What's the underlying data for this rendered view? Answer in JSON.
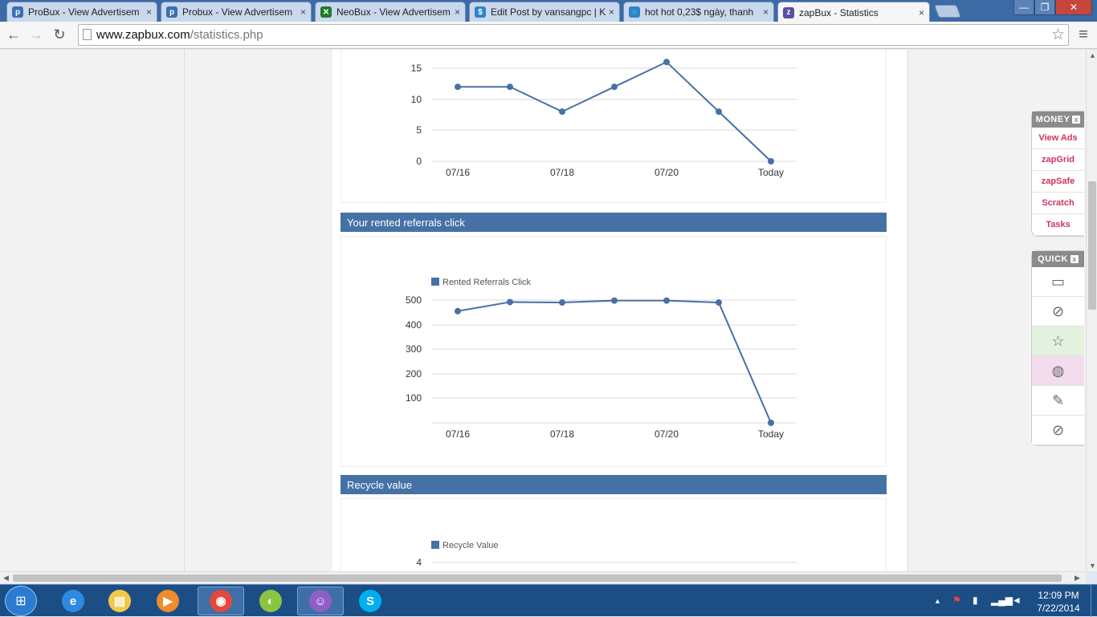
{
  "browser": {
    "tabs": [
      {
        "title": "ProBux - View Advertisem",
        "favicon_color": "#3a6fb0",
        "favicon": "p"
      },
      {
        "title": "Probux - View Advertisem",
        "favicon_color": "#3a6fb0",
        "favicon": "p"
      },
      {
        "title": "NeoBux - View Advertisem",
        "favicon_color": "#1f7a2f",
        "favicon": "✕"
      },
      {
        "title": "Edit Post by vansangpc | K",
        "favicon_color": "#2e84c9",
        "favicon": "$"
      },
      {
        "title": "hot hot 0,23$ ngày, thanh",
        "favicon_color": "#2e84c9",
        "favicon": "◌"
      },
      {
        "title": "zapBux - Statistics",
        "favicon_color": "#5a4fa2",
        "favicon": "z"
      }
    ],
    "url_domain": "www.zapbux.com",
    "url_path": "/statistics.php",
    "window_controls": [
      "—",
      "❐",
      "✕"
    ]
  },
  "charts": {
    "top": {
      "chart_data": {
        "type": "line",
        "x": [
          "07/16",
          "07/17",
          "07/18",
          "07/19",
          "07/20",
          "07/21",
          "Today"
        ],
        "x_tick_labels": [
          "07/16",
          "07/18",
          "07/20",
          "Today"
        ],
        "y_tick_labels": [
          "15",
          "10",
          "5",
          "0"
        ],
        "values": [
          12,
          12,
          8,
          12,
          16,
          8,
          0
        ],
        "ylim": [
          0,
          17
        ],
        "grid": true,
        "line_color": "#4671a6"
      }
    },
    "rented": {
      "title": "Your rented referrals click",
      "chart_data": {
        "type": "line",
        "series": [
          {
            "name": "Rented Referrals Click",
            "values": [
              455,
              492,
              490,
              498,
              498,
              490,
              0
            ]
          }
        ],
        "x": [
          "07/16",
          "07/17",
          "07/18",
          "07/19",
          "07/20",
          "07/21",
          "Today"
        ],
        "x_tick_labels": [
          "07/16",
          "07/18",
          "07/20",
          "Today"
        ],
        "y_tick_labels": [
          "500",
          "400",
          "300",
          "200",
          "100"
        ],
        "ylim": [
          0,
          500
        ],
        "grid": true,
        "legend": "top-left",
        "line_color": "#4671a6"
      }
    },
    "recycle": {
      "title": "Recycle value",
      "chart_data": {
        "type": "line",
        "series": [
          {
            "name": "Recycle Value",
            "values": []
          }
        ],
        "y_tick_labels": [
          "4"
        ],
        "legend": "top-left",
        "line_color": "#4671a6"
      }
    }
  },
  "sidebar": {
    "money": {
      "title": "MONEY",
      "close": "x",
      "items": [
        "View Ads",
        "zapGrid",
        "zapSafe",
        "Scratch",
        "Tasks"
      ]
    },
    "quick": {
      "title": "QUICK",
      "close": "x",
      "items": [
        {
          "icon": "id-card-icon",
          "glyph": "▭",
          "bg": "#ffffff"
        },
        {
          "icon": "link-icon",
          "glyph": "⊘",
          "bg": "#ffffff"
        },
        {
          "icon": "star-icon",
          "glyph": "☆",
          "bg": "#e3f2df"
        },
        {
          "icon": "globe-icon",
          "glyph": "◍",
          "bg": "#f4dcef"
        },
        {
          "icon": "edit-icon",
          "glyph": "✎",
          "bg": "#ffffff"
        },
        {
          "icon": "block-icon",
          "glyph": "⊘",
          "bg": "#ffffff"
        }
      ]
    }
  },
  "taskbar": {
    "time": "12:09 PM",
    "date": "7/22/2014",
    "apps": [
      {
        "icon": "internet-explorer-icon",
        "glyph": "e",
        "color": "#2d8ae0",
        "open": false
      },
      {
        "icon": "file-explorer-icon",
        "glyph": "▤",
        "color": "#f3c84a",
        "open": false
      },
      {
        "icon": "media-player-icon",
        "glyph": "▶",
        "color": "#f08a2a",
        "open": false
      },
      {
        "icon": "chrome-icon",
        "glyph": "◉",
        "color": "#e2493c",
        "open": true
      },
      {
        "icon": "coccoc-icon",
        "glyph": "◐",
        "color": "#8bc53f",
        "open": false
      },
      {
        "icon": "messenger-icon",
        "glyph": "☺",
        "color": "#8e5fc9",
        "open": true
      },
      {
        "icon": "skype-icon",
        "glyph": "S",
        "color": "#00aff0",
        "open": false
      }
    ]
  }
}
